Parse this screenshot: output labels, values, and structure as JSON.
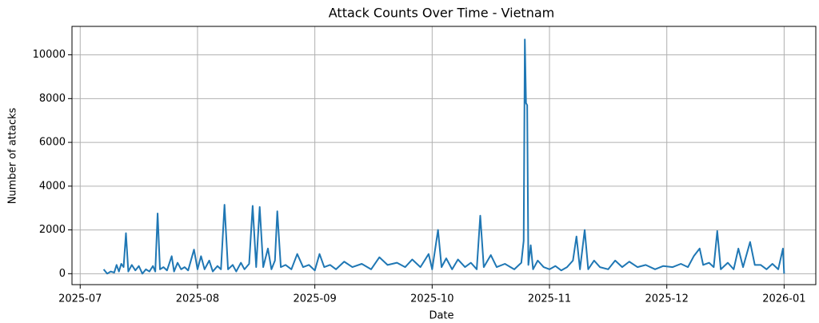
{
  "chart_data": {
    "type": "line",
    "title": "Attack Counts Over Time - Vietnam",
    "xlabel": "Date",
    "ylabel": "Number of attacks",
    "grid": true,
    "xlim": [
      -0.07,
      6.27
    ],
    "xticks": [
      {
        "value": 0,
        "label": "2025-07"
      },
      {
        "value": 1,
        "label": "2025-08"
      },
      {
        "value": 2,
        "label": "2025-09"
      },
      {
        "value": 3,
        "label": "2025-10"
      },
      {
        "value": 4,
        "label": "2025-11"
      },
      {
        "value": 5,
        "label": "2025-12"
      },
      {
        "value": 6,
        "label": "2026-01"
      }
    ],
    "ylim": [
      -500,
      11300
    ],
    "yticks": [
      0,
      2000,
      4000,
      6000,
      8000,
      10000
    ],
    "x": [
      0.2,
      0.23,
      0.26,
      0.29,
      0.31,
      0.33,
      0.35,
      0.37,
      0.39,
      0.41,
      0.44,
      0.47,
      0.5,
      0.53,
      0.56,
      0.59,
      0.62,
      0.64,
      0.66,
      0.68,
      0.71,
      0.74,
      0.78,
      0.8,
      0.83,
      0.86,
      0.89,
      0.92,
      0.97,
      1.0,
      1.03,
      1.06,
      1.1,
      1.13,
      1.17,
      1.2,
      1.23,
      1.26,
      1.3,
      1.33,
      1.37,
      1.4,
      1.44,
      1.47,
      1.5,
      1.53,
      1.56,
      1.6,
      1.63,
      1.66,
      1.68,
      1.71,
      1.75,
      1.8,
      1.85,
      1.9,
      1.95,
      2.0,
      2.04,
      2.08,
      2.13,
      2.18,
      2.25,
      2.32,
      2.4,
      2.48,
      2.55,
      2.62,
      2.7,
      2.77,
      2.83,
      2.9,
      2.97,
      3.0,
      3.05,
      3.08,
      3.12,
      3.17,
      3.22,
      3.28,
      3.33,
      3.38,
      3.41,
      3.44,
      3.5,
      3.55,
      3.62,
      3.7,
      3.76,
      3.78,
      3.79,
      3.8,
      3.81,
      3.82,
      3.84,
      3.86,
      3.9,
      3.95,
      4.0,
      4.05,
      4.1,
      4.15,
      4.2,
      4.23,
      4.26,
      4.3,
      4.33,
      4.38,
      4.43,
      4.5,
      4.56,
      4.62,
      4.68,
      4.75,
      4.82,
      4.9,
      4.97,
      5.05,
      5.12,
      5.18,
      5.23,
      5.28,
      5.31,
      5.36,
      5.4,
      5.43,
      5.46,
      5.52,
      5.57,
      5.61,
      5.65,
      5.71,
      5.75,
      5.8,
      5.85,
      5.9,
      5.95,
      5.99,
      6.0
    ],
    "series": [
      {
        "name": "Vietnam",
        "color": "#1f77b4",
        "values": [
          200,
          0,
          100,
          50,
          400,
          100,
          450,
          300,
          1850,
          100,
          400,
          150,
          350,
          0,
          200,
          100,
          350,
          100,
          2750,
          200,
          300,
          150,
          800,
          100,
          500,
          200,
          300,
          150,
          1100,
          200,
          800,
          200,
          600,
          100,
          350,
          200,
          3150,
          200,
          400,
          100,
          500,
          200,
          450,
          3100,
          300,
          3050,
          300,
          1150,
          200,
          600,
          2850,
          300,
          400,
          200,
          900,
          300,
          400,
          150,
          900,
          300,
          400,
          200,
          550,
          300,
          450,
          200,
          750,
          400,
          500,
          300,
          650,
          300,
          900,
          200,
          2000,
          300,
          700,
          200,
          650,
          300,
          500,
          200,
          2650,
          300,
          850,
          300,
          450,
          200,
          500,
          1500,
          10700,
          7800,
          7700,
          400,
          1300,
          200,
          600,
          300,
          200,
          350,
          150,
          300,
          600,
          1700,
          200,
          2000,
          200,
          600,
          300,
          200,
          600,
          300,
          550,
          300,
          400,
          200,
          350,
          300,
          450,
          300,
          800,
          1150,
          400,
          500,
          300,
          1950,
          200,
          500,
          200,
          1150,
          300,
          1450,
          400,
          400,
          200,
          450,
          200,
          1150,
          0
        ]
      }
    ]
  }
}
